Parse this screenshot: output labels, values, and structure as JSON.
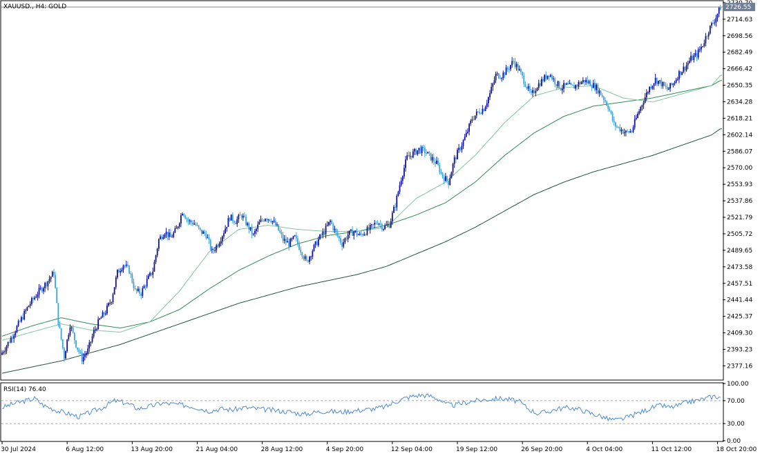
{
  "header": {
    "symbol": "XAUUSD.",
    "timeframe": "H4",
    "instrument": "GOLD",
    "title_separator": ", ",
    "instrument_separator": ":  "
  },
  "current_price": "2726.55",
  "rsi": {
    "label": "RSI(14) 76.40",
    "levels": [
      "100.00",
      "70.00",
      "30.00",
      "0.00"
    ],
    "level_values": [
      100,
      70,
      30,
      0
    ],
    "guide_levels": [
      70,
      30
    ],
    "ylim": [
      0,
      100
    ]
  },
  "chart_data": {
    "type": "candlestick",
    "title": "XAUUSD., H4:  GOLD",
    "ylim": [
      2364,
      2732
    ],
    "price_ticks": [
      "2730.70",
      "2714.63",
      "2698.56",
      "2682.49",
      "2666.42",
      "2650.35",
      "2634.28",
      "2618.21",
      "2602.14",
      "2586.07",
      "2570.00",
      "2553.93",
      "2537.86",
      "2521.79",
      "2505.72",
      "2489.65",
      "2473.58",
      "2457.51",
      "2441.44",
      "2425.37",
      "2409.30",
      "2393.23",
      "2377.16"
    ],
    "price_tick_values": [
      2730.7,
      2714.63,
      2698.56,
      2682.49,
      2666.42,
      2650.35,
      2634.28,
      2618.21,
      2602.14,
      2586.07,
      2570.0,
      2553.93,
      2537.86,
      2521.79,
      2505.72,
      2489.65,
      2473.58,
      2457.51,
      2441.44,
      2425.37,
      2409.3,
      2393.23,
      2377.16
    ],
    "time_ticks": [
      "30 Jul 2024",
      "6 Aug 12:00",
      "13 Aug 20:00",
      "21 Aug 04:00",
      "28 Aug 12:00",
      "4 Sep 20:00",
      "12 Sep 04:00",
      "19 Sep 12:00",
      "26 Sep 20:00",
      "4 Oct 04:00",
      "11 Oct 12:00",
      "18 Oct 20:00"
    ],
    "time_tick_index": [
      0,
      44,
      88,
      132,
      176,
      220,
      264,
      308,
      352,
      396,
      440,
      484
    ],
    "bar_count": 488,
    "price_anchors": [
      [
        0,
        2390
      ],
      [
        6,
        2404
      ],
      [
        12,
        2420
      ],
      [
        18,
        2436
      ],
      [
        24,
        2448
      ],
      [
        30,
        2458
      ],
      [
        35,
        2468
      ],
      [
        38,
        2420
      ],
      [
        42,
        2386
      ],
      [
        46,
        2418
      ],
      [
        50,
        2398
      ],
      [
        54,
        2384
      ],
      [
        58,
        2392
      ],
      [
        62,
        2410
      ],
      [
        66,
        2422
      ],
      [
        70,
        2430
      ],
      [
        74,
        2442
      ],
      [
        78,
        2468
      ],
      [
        82,
        2476
      ],
      [
        86,
        2470
      ],
      [
        90,
        2450
      ],
      [
        94,
        2448
      ],
      [
        98,
        2460
      ],
      [
        102,
        2470
      ],
      [
        106,
        2500
      ],
      [
        110,
        2508
      ],
      [
        114,
        2502
      ],
      [
        118,
        2510
      ],
      [
        122,
        2528
      ],
      [
        126,
        2518
      ],
      [
        130,
        2516
      ],
      [
        134,
        2508
      ],
      [
        138,
        2505
      ],
      [
        142,
        2488
      ],
      [
        146,
        2496
      ],
      [
        150,
        2508
      ],
      [
        154,
        2522
      ],
      [
        158,
        2518
      ],
      [
        162,
        2524
      ],
      [
        166,
        2514
      ],
      [
        170,
        2504
      ],
      [
        174,
        2516
      ],
      [
        178,
        2522
      ],
      [
        182,
        2520
      ],
      [
        186,
        2512
      ],
      [
        190,
        2500
      ],
      [
        194,
        2496
      ],
      [
        198,
        2502
      ],
      [
        202,
        2490
      ],
      [
        206,
        2478
      ],
      [
        210,
        2490
      ],
      [
        214,
        2500
      ],
      [
        218,
        2508
      ],
      [
        222,
        2518
      ],
      [
        226,
        2506
      ],
      [
        230,
        2496
      ],
      [
        234,
        2505
      ],
      [
        238,
        2508
      ],
      [
        242,
        2504
      ],
      [
        246,
        2508
      ],
      [
        250,
        2512
      ],
      [
        254,
        2518
      ],
      [
        258,
        2512
      ],
      [
        262,
        2515
      ],
      [
        266,
        2534
      ],
      [
        270,
        2560
      ],
      [
        274,
        2580
      ],
      [
        278,
        2584
      ],
      [
        282,
        2588
      ],
      [
        286,
        2586
      ],
      [
        290,
        2580
      ],
      [
        294,
        2574
      ],
      [
        298,
        2562
      ],
      [
        302,
        2556
      ],
      [
        306,
        2578
      ],
      [
        310,
        2590
      ],
      [
        314,
        2602
      ],
      [
        318,
        2618
      ],
      [
        322,
        2624
      ],
      [
        326,
        2628
      ],
      [
        330,
        2642
      ],
      [
        334,
        2660
      ],
      [
        338,
        2660
      ],
      [
        342,
        2666
      ],
      [
        346,
        2674
      ],
      [
        350,
        2664
      ],
      [
        354,
        2652
      ],
      [
        358,
        2640
      ],
      [
        362,
        2650
      ],
      [
        366,
        2656
      ],
      [
        370,
        2662
      ],
      [
        374,
        2654
      ],
      [
        378,
        2648
      ],
      [
        382,
        2650
      ],
      [
        386,
        2648
      ],
      [
        390,
        2652
      ],
      [
        394,
        2655
      ],
      [
        398,
        2652
      ],
      [
        402,
        2648
      ],
      [
        406,
        2640
      ],
      [
        410,
        2630
      ],
      [
        414,
        2612
      ],
      [
        418,
        2608
      ],
      [
        422,
        2604
      ],
      [
        426,
        2606
      ],
      [
        430,
        2622
      ],
      [
        434,
        2636
      ],
      [
        438,
        2648
      ],
      [
        442,
        2656
      ],
      [
        446,
        2652
      ],
      [
        450,
        2646
      ],
      [
        454,
        2652
      ],
      [
        458,
        2662
      ],
      [
        462,
        2668
      ],
      [
        466,
        2676
      ],
      [
        470,
        2680
      ],
      [
        474,
        2690
      ],
      [
        478,
        2704
      ],
      [
        482,
        2714
      ],
      [
        486,
        2726
      ]
    ],
    "ma_fast_anchors": [
      [
        0,
        2402
      ],
      [
        20,
        2410
      ],
      [
        40,
        2418
      ],
      [
        60,
        2412
      ],
      [
        80,
        2410
      ],
      [
        100,
        2420
      ],
      [
        120,
        2450
      ],
      [
        140,
        2488
      ],
      [
        160,
        2510
      ],
      [
        180,
        2514
      ],
      [
        200,
        2510
      ],
      [
        220,
        2508
      ],
      [
        240,
        2508
      ],
      [
        260,
        2512
      ],
      [
        280,
        2540
      ],
      [
        300,
        2556
      ],
      [
        320,
        2582
      ],
      [
        340,
        2614
      ],
      [
        360,
        2640
      ],
      [
        380,
        2648
      ],
      [
        400,
        2650
      ],
      [
        420,
        2638
      ],
      [
        440,
        2634
      ],
      [
        460,
        2642
      ],
      [
        480,
        2650
      ],
      [
        486,
        2660
      ]
    ],
    "ma_mid_anchors": [
      [
        0,
        2406
      ],
      [
        20,
        2416
      ],
      [
        40,
        2424
      ],
      [
        60,
        2418
      ],
      [
        80,
        2414
      ],
      [
        100,
        2420
      ],
      [
        120,
        2432
      ],
      [
        140,
        2452
      ],
      [
        160,
        2470
      ],
      [
        180,
        2484
      ],
      [
        200,
        2496
      ],
      [
        220,
        2504
      ],
      [
        240,
        2508
      ],
      [
        260,
        2514
      ],
      [
        280,
        2524
      ],
      [
        300,
        2536
      ],
      [
        320,
        2556
      ],
      [
        340,
        2582
      ],
      [
        360,
        2604
      ],
      [
        380,
        2620
      ],
      [
        400,
        2630
      ],
      [
        420,
        2634
      ],
      [
        440,
        2638
      ],
      [
        460,
        2644
      ],
      [
        480,
        2650
      ],
      [
        486,
        2655
      ]
    ],
    "ma_slow_anchors": [
      [
        0,
        2370
      ],
      [
        20,
        2376
      ],
      [
        40,
        2382
      ],
      [
        60,
        2390
      ],
      [
        80,
        2398
      ],
      [
        100,
        2408
      ],
      [
        120,
        2418
      ],
      [
        140,
        2428
      ],
      [
        160,
        2438
      ],
      [
        180,
        2446
      ],
      [
        200,
        2454
      ],
      [
        220,
        2460
      ],
      [
        240,
        2466
      ],
      [
        260,
        2474
      ],
      [
        280,
        2486
      ],
      [
        300,
        2498
      ],
      [
        320,
        2512
      ],
      [
        340,
        2528
      ],
      [
        360,
        2544
      ],
      [
        380,
        2556
      ],
      [
        400,
        2566
      ],
      [
        420,
        2574
      ],
      [
        440,
        2582
      ],
      [
        460,
        2592
      ],
      [
        480,
        2602
      ],
      [
        486,
        2608
      ]
    ],
    "rsi_anchors": [
      [
        0,
        58
      ],
      [
        8,
        65
      ],
      [
        16,
        70
      ],
      [
        22,
        74
      ],
      [
        28,
        62
      ],
      [
        32,
        58
      ],
      [
        38,
        52
      ],
      [
        44,
        48
      ],
      [
        52,
        42
      ],
      [
        60,
        50
      ],
      [
        68,
        58
      ],
      [
        76,
        70
      ],
      [
        84,
        66
      ],
      [
        92,
        56
      ],
      [
        100,
        60
      ],
      [
        108,
        66
      ],
      [
        116,
        64
      ],
      [
        124,
        62
      ],
      [
        132,
        58
      ],
      [
        140,
        52
      ],
      [
        148,
        56
      ],
      [
        156,
        54
      ],
      [
        164,
        58
      ],
      [
        172,
        56
      ],
      [
        180,
        54
      ],
      [
        188,
        52
      ],
      [
        196,
        50
      ],
      [
        204,
        46
      ],
      [
        212,
        50
      ],
      [
        220,
        52
      ],
      [
        228,
        50
      ],
      [
        236,
        52
      ],
      [
        244,
        54
      ],
      [
        252,
        56
      ],
      [
        260,
        60
      ],
      [
        266,
        68
      ],
      [
        272,
        74
      ],
      [
        278,
        78
      ],
      [
        284,
        80
      ],
      [
        290,
        78
      ],
      [
        296,
        72
      ],
      [
        300,
        64
      ],
      [
        306,
        62
      ],
      [
        312,
        66
      ],
      [
        320,
        70
      ],
      [
        328,
        72
      ],
      [
        336,
        74
      ],
      [
        344,
        72
      ],
      [
        350,
        68
      ],
      [
        356,
        56
      ],
      [
        362,
        48
      ],
      [
        368,
        50
      ],
      [
        376,
        56
      ],
      [
        384,
        58
      ],
      [
        392,
        54
      ],
      [
        398,
        48
      ],
      [
        404,
        44
      ],
      [
        410,
        38
      ],
      [
        416,
        36
      ],
      [
        422,
        40
      ],
      [
        428,
        46
      ],
      [
        434,
        52
      ],
      [
        440,
        58
      ],
      [
        446,
        62
      ],
      [
        452,
        58
      ],
      [
        458,
        62
      ],
      [
        464,
        68
      ],
      [
        470,
        70
      ],
      [
        476,
        74
      ],
      [
        482,
        78
      ],
      [
        486,
        76
      ]
    ],
    "colors": {
      "bull": "#10109a",
      "bear": "#3ea4d8",
      "ma_fast": "#7fc5a0",
      "ma_mid": "#2f8a56",
      "ma_slow": "#23523a",
      "rsi_line": "#4a8ad6",
      "price_line": "#8a8a8a",
      "label_bg": "#6f7f95",
      "axis": "#000000",
      "grid_dash": "#a8a8a8"
    }
  }
}
